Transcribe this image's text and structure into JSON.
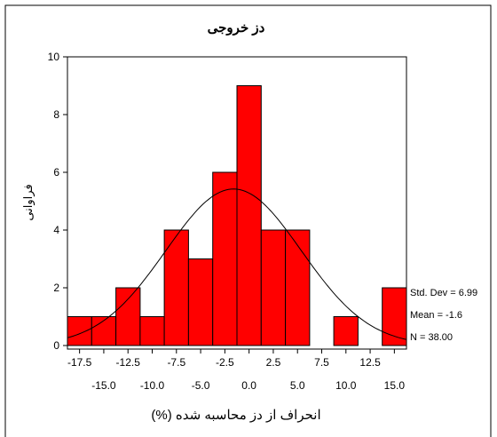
{
  "chart_data": {
    "type": "bar",
    "title": "دز خروجی",
    "xlabel": "انحراف از دز محاسبه شده (%)",
    "ylabel": "فراوانی",
    "bin_width": 2.5,
    "bin_centers": [
      -17.5,
      -15.0,
      -12.5,
      -10.0,
      -7.5,
      -5.0,
      -2.5,
      0.0,
      2.5,
      5.0,
      7.5,
      10.0,
      12.5,
      15.0
    ],
    "values": [
      1,
      1,
      2,
      1,
      4,
      3,
      6,
      9,
      4,
      4,
      0,
      1,
      0,
      2
    ],
    "xtick_labels_top": [
      "-17.5",
      "-12.5",
      "-7.5",
      "-2.5",
      "2.5",
      "7.5",
      "12.5"
    ],
    "xtick_labels_bottom": [
      "-15.0",
      "-10.0",
      "-5.0",
      "0.0",
      "5.0",
      "10.0",
      "15.0"
    ],
    "ylim": [
      0,
      10
    ],
    "yticks": [
      0,
      2,
      4,
      6,
      8,
      10
    ],
    "bar_color": "#ff0000",
    "normal_curve": {
      "mean": -1.6,
      "std": 6.99,
      "n": 38
    },
    "stats": {
      "std_dev": "Std. Dev = 6.99",
      "mean": "Mean = -1.6",
      "n": "N = 38.00"
    },
    "grid": false
  }
}
